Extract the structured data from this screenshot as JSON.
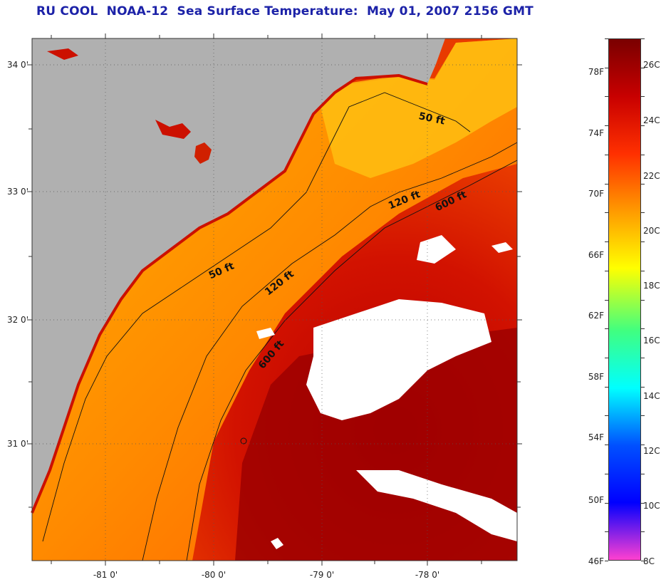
{
  "title": "RU COOL  NOAA-12  Sea Surface Temperature:  May 01, 2007 2156 GMT",
  "map": {
    "latitude_labels": [
      "34 0'",
      "33 0'",
      "32 0'",
      "31 0'"
    ],
    "longitude_labels": [
      "-81 0'",
      "-80 0'",
      "-79 0'",
      "-78 0'"
    ],
    "contour_labels": [
      "50 ft",
      "120 ft",
      "600 ft",
      "50 ft",
      "120 ft",
      "600 ft"
    ],
    "land_color": "#b0b0b0",
    "cloud_color": "#ffffff"
  },
  "colorbar": {
    "fahrenheit_labels": [
      "78F",
      "74F",
      "70F",
      "66F",
      "62F",
      "58F",
      "54F",
      "50F",
      "46F"
    ],
    "celsius_labels": [
      "26C",
      "24C",
      "22C",
      "20C",
      "18C",
      "16C",
      "14C",
      "12C",
      "10C",
      "8C"
    ],
    "colors": [
      "#7a0000",
      "#c80000",
      "#ff3000",
      "#ff9a00",
      "#ffff00",
      "#40ff80",
      "#00ffff",
      "#0050ff",
      "#0000ff",
      "#ff40d0"
    ]
  }
}
